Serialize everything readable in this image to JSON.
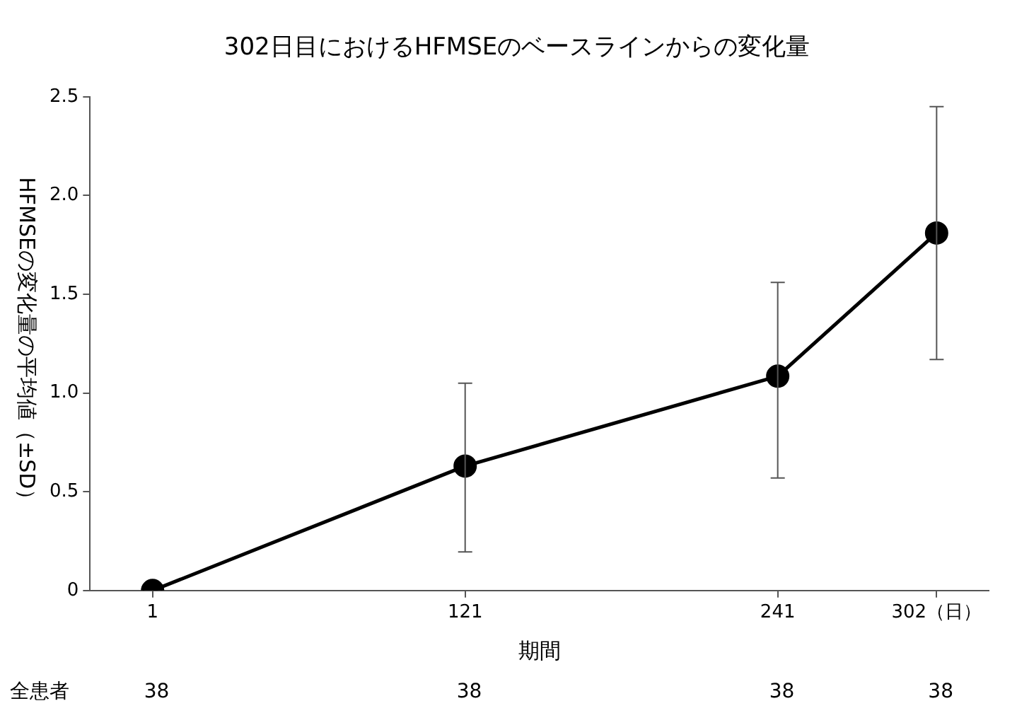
{
  "chart_data": {
    "type": "line",
    "title": "302日目におけるHFMSEのベースラインからの変化量",
    "xlabel": "期間",
    "ylabel": "HFMSEの変化量の平均値（±SD）",
    "x": [
      1,
      121,
      241,
      302
    ],
    "series": [
      {
        "color": "#000000",
        "values": [
          0,
          0.63,
          1.085,
          1.81
        ],
        "errors": [
          null,
          [
            0.195,
            1.05
          ],
          [
            0.57,
            1.56
          ],
          [
            1.17,
            2.45
          ]
        ]
      }
    ],
    "xlim": [
      -23,
      322
    ],
    "xticks": [
      1,
      121,
      241,
      {
        "value": 302,
        "label": "302（日）"
      }
    ],
    "ylim": [
      0,
      2.5
    ],
    "yticks": [
      0,
      0.5,
      {
        "value": 1,
        "label": "1.0"
      },
      1.5,
      {
        "value": 2,
        "label": "2.0"
      },
      2.5
    ],
    "grid": false,
    "legend": false,
    "marker": "circle",
    "line_style": "solid",
    "annotations": [
      "全患者",
      "38",
      "38",
      "38",
      "38"
    ]
  }
}
